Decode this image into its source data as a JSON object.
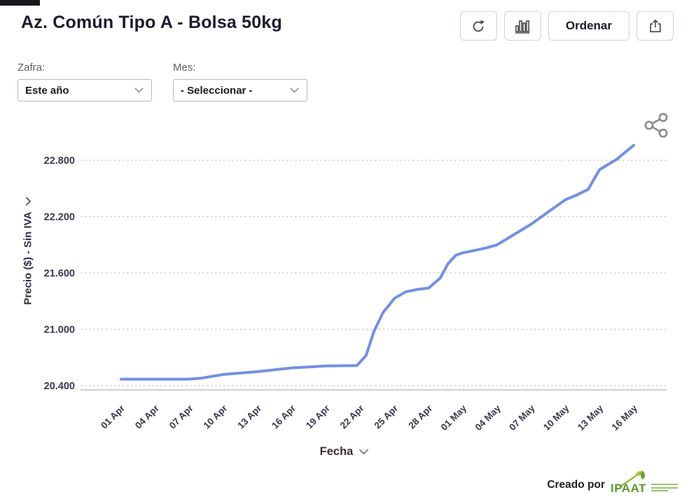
{
  "header": {
    "title": "Az. Común Tipo A - Bolsa 50kg"
  },
  "toolbar": {
    "refresh_icon": "refresh-icon",
    "chart_type_icon": "bar-chart-icon",
    "sort_label": "Ordenar",
    "export_icon": "export-icon"
  },
  "filters": {
    "zafra": {
      "label": "Zafra:",
      "value": "Este año"
    },
    "mes": {
      "label": "Mes:",
      "value": "- Seleccionar -"
    }
  },
  "chart_data": {
    "type": "line",
    "title": "Az. Común Tipo A - Bolsa 50kg",
    "xlabel": "Fecha",
    "ylabel": "Precio ($) - Sin IVA",
    "ylim": [
      20400,
      23000
    ],
    "grid": "horizontal-dashed",
    "legend": "none",
    "y_ticks": [
      {
        "value": 20400,
        "label": "20.400"
      },
      {
        "value": 21000,
        "label": "21.000"
      },
      {
        "value": 21600,
        "label": "21.600"
      },
      {
        "value": 22200,
        "label": "22.200"
      },
      {
        "value": 22800,
        "label": "22.800"
      }
    ],
    "x_ticks": [
      "01 Apr",
      "04 Apr",
      "07 Apr",
      "10 Apr",
      "13 Apr",
      "16 Apr",
      "19 Apr",
      "22 Apr",
      "25 Apr",
      "28 Apr",
      "01 May",
      "04 May",
      "07 May",
      "10 May",
      "13 May",
      "16 May"
    ],
    "x_tick_interval_days": 3,
    "series": [
      {
        "name": "Precio ($) - Sin IVA",
        "color": "#7390e2",
        "points_day_value": [
          [
            0,
            20470
          ],
          [
            3,
            20470
          ],
          [
            6,
            20470
          ],
          [
            7,
            20480
          ],
          [
            9,
            20520
          ],
          [
            12,
            20550
          ],
          [
            15,
            20590
          ],
          [
            16.5,
            20600
          ],
          [
            18,
            20610
          ],
          [
            20.7,
            20615
          ],
          [
            21.5,
            20720
          ],
          [
            22.2,
            20980
          ],
          [
            23,
            21180
          ],
          [
            24,
            21330
          ],
          [
            25,
            21400
          ],
          [
            26,
            21425
          ],
          [
            27,
            21440
          ],
          [
            28,
            21545
          ],
          [
            28.7,
            21700
          ],
          [
            29.4,
            21790
          ],
          [
            30,
            21815
          ],
          [
            31,
            21840
          ],
          [
            32,
            21865
          ],
          [
            33,
            21900
          ],
          [
            34.5,
            22010
          ],
          [
            36,
            22120
          ],
          [
            37.5,
            22250
          ],
          [
            39,
            22380
          ],
          [
            40,
            22430
          ],
          [
            41,
            22490
          ],
          [
            42,
            22700
          ],
          [
            43.5,
            22810
          ],
          [
            45,
            22960
          ]
        ]
      }
    ]
  },
  "footer": {
    "credit": "Creado por",
    "logo_text": "IPAAT"
  },
  "colors": {
    "line": "#7390e2",
    "grid": "#c7c7c7",
    "axis": "#b5b5b5",
    "logo_green": "#5a9b2e"
  }
}
